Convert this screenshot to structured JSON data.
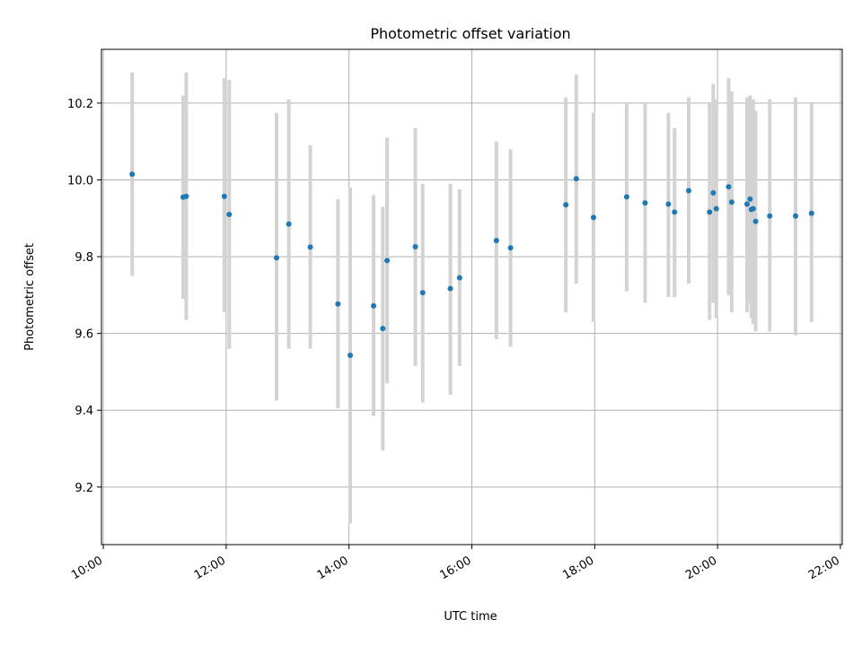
{
  "chart_data": {
    "type": "scatter",
    "title": "Photometric offset variation",
    "xlabel": "UTC time",
    "ylabel": "Photometric offset",
    "x_unit": "hours",
    "xlim": [
      9.97,
      22.03
    ],
    "ylim": [
      9.05,
      10.34
    ],
    "x_ticks": [
      {
        "value": 10,
        "label": "10:00"
      },
      {
        "value": 12,
        "label": "12:00"
      },
      {
        "value": 14,
        "label": "14:00"
      },
      {
        "value": 16,
        "label": "16:00"
      },
      {
        "value": 18,
        "label": "18:00"
      },
      {
        "value": 20,
        "label": "20:00"
      },
      {
        "value": 22,
        "label": "22:00"
      }
    ],
    "y_ticks": [
      {
        "value": 9.2,
        "label": "9.2"
      },
      {
        "value": 9.4,
        "label": "9.4"
      },
      {
        "value": 9.6,
        "label": "9.6"
      },
      {
        "value": 9.8,
        "label": "9.8"
      },
      {
        "value": 10.0,
        "label": "10.0"
      },
      {
        "value": 10.2,
        "label": "10.2"
      }
    ],
    "grid": true,
    "point_color": "#1f77b4",
    "errorbar_color": "#d3d3d3",
    "points": [
      {
        "x": 10.47,
        "y": 10.015,
        "ylow": 9.75,
        "yhigh": 10.28
      },
      {
        "x": 11.3,
        "y": 9.955,
        "ylow": 9.69,
        "yhigh": 10.22
      },
      {
        "x": 11.35,
        "y": 9.957,
        "ylow": 9.635,
        "yhigh": 10.28
      },
      {
        "x": 11.97,
        "y": 9.957,
        "ylow": 9.655,
        "yhigh": 10.265
      },
      {
        "x": 12.05,
        "y": 9.91,
        "ylow": 9.56,
        "yhigh": 10.26
      },
      {
        "x": 12.82,
        "y": 9.797,
        "ylow": 9.425,
        "yhigh": 10.175
      },
      {
        "x": 13.02,
        "y": 9.885,
        "ylow": 9.56,
        "yhigh": 10.21
      },
      {
        "x": 13.37,
        "y": 9.825,
        "ylow": 9.56,
        "yhigh": 10.09
      },
      {
        "x": 13.82,
        "y": 9.677,
        "ylow": 9.405,
        "yhigh": 9.95
      },
      {
        "x": 14.02,
        "y": 9.543,
        "ylow": 9.105,
        "yhigh": 9.98
      },
      {
        "x": 14.4,
        "y": 9.672,
        "ylow": 9.385,
        "yhigh": 9.96
      },
      {
        "x": 14.55,
        "y": 9.613,
        "ylow": 9.295,
        "yhigh": 9.93
      },
      {
        "x": 14.62,
        "y": 9.79,
        "ylow": 9.47,
        "yhigh": 10.11
      },
      {
        "x": 15.08,
        "y": 9.826,
        "ylow": 9.515,
        "yhigh": 10.135
      },
      {
        "x": 15.2,
        "y": 9.706,
        "ylow": 9.42,
        "yhigh": 9.99
      },
      {
        "x": 15.65,
        "y": 9.717,
        "ylow": 9.44,
        "yhigh": 9.99
      },
      {
        "x": 15.8,
        "y": 9.745,
        "ylow": 9.515,
        "yhigh": 9.975
      },
      {
        "x": 16.4,
        "y": 9.842,
        "ylow": 9.585,
        "yhigh": 10.1
      },
      {
        "x": 16.63,
        "y": 9.823,
        "ylow": 9.565,
        "yhigh": 10.08
      },
      {
        "x": 17.53,
        "y": 9.935,
        "ylow": 9.655,
        "yhigh": 10.215
      },
      {
        "x": 17.7,
        "y": 10.003,
        "ylow": 9.73,
        "yhigh": 10.275
      },
      {
        "x": 17.98,
        "y": 9.902,
        "ylow": 9.63,
        "yhigh": 10.175
      },
      {
        "x": 18.52,
        "y": 9.956,
        "ylow": 9.71,
        "yhigh": 10.2
      },
      {
        "x": 18.82,
        "y": 9.94,
        "ylow": 9.68,
        "yhigh": 10.2
      },
      {
        "x": 19.2,
        "y": 9.937,
        "ylow": 9.695,
        "yhigh": 10.175
      },
      {
        "x": 19.3,
        "y": 9.916,
        "ylow": 9.695,
        "yhigh": 10.135
      },
      {
        "x": 19.53,
        "y": 9.972,
        "ylow": 9.73,
        "yhigh": 10.215
      },
      {
        "x": 19.87,
        "y": 9.916,
        "ylow": 9.635,
        "yhigh": 10.2
      },
      {
        "x": 19.93,
        "y": 9.966,
        "ylow": 9.68,
        "yhigh": 10.25
      },
      {
        "x": 19.98,
        "y": 9.925,
        "ylow": 9.64,
        "yhigh": 10.21
      },
      {
        "x": 20.18,
        "y": 9.982,
        "ylow": 9.7,
        "yhigh": 10.265
      },
      {
        "x": 20.23,
        "y": 9.942,
        "ylow": 9.655,
        "yhigh": 10.23
      },
      {
        "x": 20.48,
        "y": 9.937,
        "ylow": 9.655,
        "yhigh": 10.215
      },
      {
        "x": 20.53,
        "y": 9.95,
        "ylow": 9.68,
        "yhigh": 10.22
      },
      {
        "x": 20.55,
        "y": 9.923,
        "ylow": 9.64,
        "yhigh": 10.205
      },
      {
        "x": 20.58,
        "y": 9.925,
        "ylow": 9.625,
        "yhigh": 10.21
      },
      {
        "x": 20.62,
        "y": 9.892,
        "ylow": 9.605,
        "yhigh": 10.18
      },
      {
        "x": 20.85,
        "y": 9.906,
        "ylow": 9.605,
        "yhigh": 10.21
      },
      {
        "x": 21.27,
        "y": 9.906,
        "ylow": 9.595,
        "yhigh": 10.215
      },
      {
        "x": 21.53,
        "y": 9.913,
        "ylow": 9.63,
        "yhigh": 10.2
      }
    ]
  }
}
